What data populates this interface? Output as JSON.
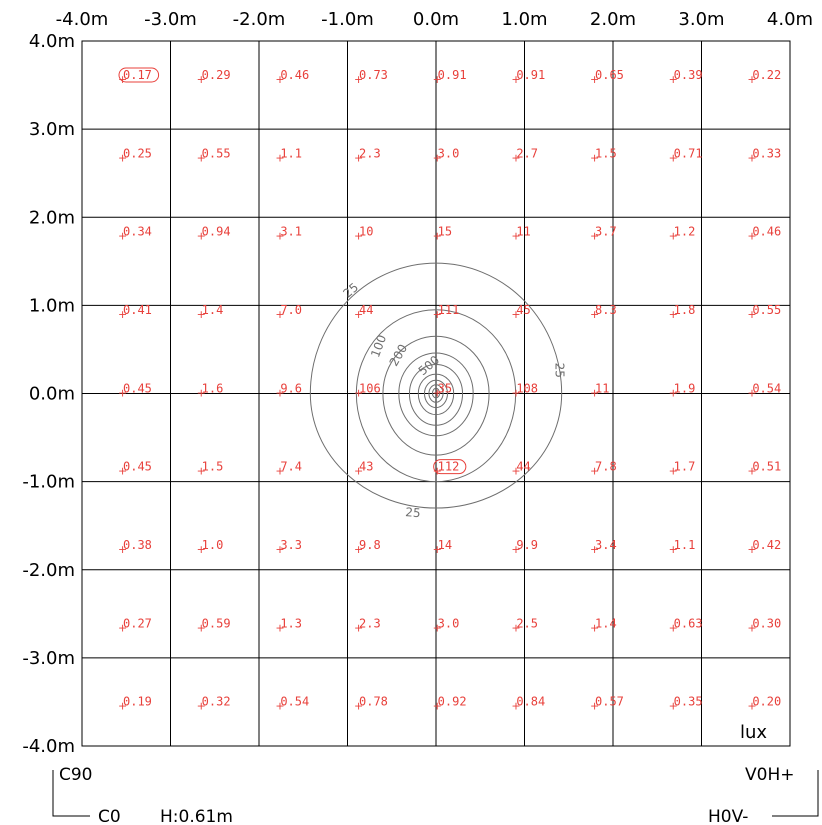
{
  "chart_data": {
    "type": "heatmap",
    "unit": "lux",
    "x_ticks": [
      "-4.0m",
      "-3.0m",
      "-2.0m",
      "-1.0m",
      "0.0m",
      "1.0m",
      "2.0m",
      "3.0m",
      "4.0m"
    ],
    "y_ticks": [
      "4.0m",
      "3.0m",
      "2.0m",
      "1.0m",
      "0.0m",
      "-1.0m",
      "-2.0m",
      "-3.0m",
      "-4.0m"
    ],
    "xlim": [
      -4.0,
      4.0
    ],
    "ylim": [
      -4.0,
      4.0
    ],
    "grid": true,
    "rows": [
      [
        "0.17",
        "0.29",
        "0.46",
        "0.73",
        "0.91",
        "0.91",
        "0.65",
        "0.39",
        "0.22"
      ],
      [
        "0.25",
        "0.55",
        "1.1",
        "2.3",
        "3.0",
        "2.7",
        "1.5",
        "0.71",
        "0.33"
      ],
      [
        "0.34",
        "0.94",
        "3.1",
        "10",
        "15",
        "11",
        "3.7",
        "1.2",
        "0.46"
      ],
      [
        "0.41",
        "1.4",
        "7.0",
        "44",
        "111",
        "45",
        "8.3",
        "1.8",
        "0.55"
      ],
      [
        "0.45",
        "1.6",
        "9.6",
        "106",
        "35",
        "108",
        "11",
        "1.9",
        "0.54"
      ],
      [
        "0.45",
        "1.5",
        "7.4",
        "43",
        "112",
        "44",
        "7.8",
        "1.7",
        "0.51"
      ],
      [
        "0.38",
        "1.0",
        "3.3",
        "9.8",
        "14",
        "9.9",
        "3.4",
        "1.1",
        "0.42"
      ],
      [
        "0.27",
        "0.59",
        "1.3",
        "2.3",
        "3.0",
        "2.5",
        "1.4",
        "0.63",
        "0.30"
      ],
      [
        "0.19",
        "0.32",
        "0.54",
        "0.78",
        "0.92",
        "0.84",
        "0.57",
        "0.35",
        "0.20"
      ]
    ],
    "min_value": "0.17",
    "max_value": "112",
    "contour_levels": [
      "25",
      "100",
      "200",
      "500"
    ],
    "contour_labels": [
      "25",
      "25",
      "25",
      "100",
      "200",
      "500"
    ]
  },
  "corner_labels": {
    "c90": "C90",
    "c0": "C0",
    "height": "H:0.61m",
    "v0h": "V0H+",
    "h0v": "H0V-"
  },
  "colors": {
    "values": "#e8403b",
    "contours": "#6e6e6e",
    "grid": "#000000"
  }
}
